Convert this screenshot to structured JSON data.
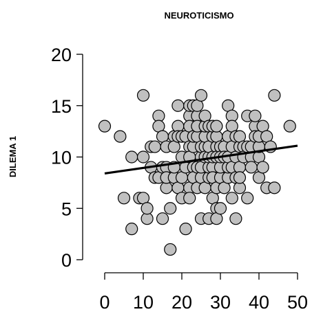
{
  "chart_data": {
    "type": "scatter",
    "title": "NEUROTICISMO",
    "xlabel": "",
    "ylabel": "DILEMA 1",
    "xlim": [
      0,
      50
    ],
    "ylim": [
      0,
      20
    ],
    "x_ticks": [
      0,
      10,
      20,
      30,
      40,
      50
    ],
    "y_ticks": [
      0,
      5,
      10,
      15,
      20
    ],
    "grid": false,
    "point_color": "#c0c0c0",
    "trend_line": {
      "x": [
        0,
        50
      ],
      "y": [
        8.4,
        11.1
      ]
    },
    "points": [
      [
        0,
        13
      ],
      [
        4,
        12
      ],
      [
        5,
        6
      ],
      [
        7,
        3
      ],
      [
        7,
        10
      ],
      [
        9,
        6
      ],
      [
        10,
        10
      ],
      [
        10,
        16
      ],
      [
        10,
        6
      ],
      [
        11,
        4
      ],
      [
        11,
        5
      ],
      [
        12,
        9
      ],
      [
        12,
        11
      ],
      [
        13,
        8
      ],
      [
        13,
        11
      ],
      [
        14,
        14
      ],
      [
        14,
        13
      ],
      [
        14,
        8
      ],
      [
        15,
        9
      ],
      [
        15,
        4
      ],
      [
        15,
        12
      ],
      [
        16,
        11
      ],
      [
        16,
        7
      ],
      [
        16,
        9
      ],
      [
        16,
        8
      ],
      [
        17,
        5
      ],
      [
        17,
        1
      ],
      [
        18,
        8
      ],
      [
        18,
        12
      ],
      [
        18,
        11
      ],
      [
        18,
        9
      ],
      [
        19,
        13
      ],
      [
        19,
        15
      ],
      [
        19,
        12
      ],
      [
        19,
        7
      ],
      [
        20,
        10
      ],
      [
        20,
        8
      ],
      [
        20,
        6
      ],
      [
        20,
        12
      ],
      [
        21,
        3
      ],
      [
        21,
        12
      ],
      [
        21,
        9
      ],
      [
        22,
        7
      ],
      [
        22,
        11
      ],
      [
        22,
        14
      ],
      [
        22,
        15
      ],
      [
        22,
        6
      ],
      [
        22,
        13
      ],
      [
        22,
        10
      ],
      [
        23,
        15
      ],
      [
        23,
        11
      ],
      [
        23,
        9
      ],
      [
        23,
        8
      ],
      [
        23,
        12
      ],
      [
        24,
        7
      ],
      [
        24,
        14
      ],
      [
        24,
        12
      ],
      [
        24,
        13
      ],
      [
        24,
        9
      ],
      [
        24,
        15
      ],
      [
        25,
        10
      ],
      [
        25,
        11
      ],
      [
        25,
        8
      ],
      [
        25,
        4
      ],
      [
        25,
        16
      ],
      [
        25,
        9
      ],
      [
        26,
        11
      ],
      [
        26,
        12
      ],
      [
        26,
        7
      ],
      [
        26,
        13
      ],
      [
        26,
        10
      ],
      [
        26,
        14
      ],
      [
        27,
        8
      ],
      [
        27,
        13
      ],
      [
        27,
        9
      ],
      [
        27,
        10
      ],
      [
        27,
        11
      ],
      [
        27,
        4
      ],
      [
        28,
        6
      ],
      [
        28,
        12
      ],
      [
        28,
        9
      ],
      [
        28,
        13
      ],
      [
        28,
        10
      ],
      [
        28,
        8
      ],
      [
        29,
        11
      ],
      [
        29,
        5
      ],
      [
        29,
        12
      ],
      [
        29,
        13
      ],
      [
        29,
        10
      ],
      [
        29,
        7
      ],
      [
        29,
        4
      ],
      [
        30,
        5
      ],
      [
        30,
        11
      ],
      [
        30,
        8
      ],
      [
        30,
        9
      ],
      [
        30,
        10
      ],
      [
        31,
        11
      ],
      [
        31,
        10
      ],
      [
        31,
        7
      ],
      [
        32,
        15
      ],
      [
        32,
        12
      ],
      [
        32,
        8
      ],
      [
        32,
        9
      ],
      [
        32,
        10
      ],
      [
        33,
        14
      ],
      [
        33,
        11
      ],
      [
        33,
        13
      ],
      [
        33,
        6
      ],
      [
        33,
        9
      ],
      [
        34,
        4
      ],
      [
        34,
        12
      ],
      [
        34,
        10
      ],
      [
        34,
        8
      ],
      [
        35,
        11
      ],
      [
        35,
        7
      ],
      [
        35,
        12
      ],
      [
        35,
        9
      ],
      [
        35,
        8
      ],
      [
        36,
        11
      ],
      [
        36,
        10
      ],
      [
        37,
        14
      ],
      [
        37,
        11
      ],
      [
        37,
        6
      ],
      [
        38,
        10
      ],
      [
        38,
        11
      ],
      [
        38,
        9
      ],
      [
        39,
        13
      ],
      [
        39,
        12
      ],
      [
        39,
        14
      ],
      [
        40,
        8
      ],
      [
        40,
        10
      ],
      [
        40,
        11
      ],
      [
        40,
        12
      ],
      [
        41,
        13
      ],
      [
        41,
        9
      ],
      [
        42,
        7
      ],
      [
        42,
        12
      ],
      [
        43,
        11
      ],
      [
        44,
        7
      ],
      [
        44,
        16
      ],
      [
        48,
        13
      ]
    ]
  }
}
